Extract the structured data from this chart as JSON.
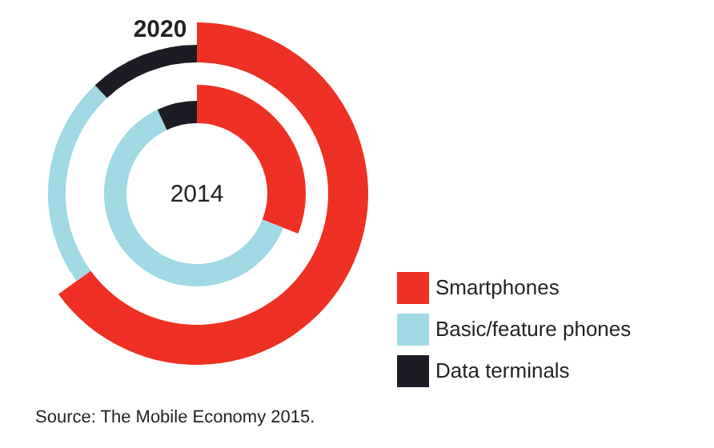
{
  "chart_data": {
    "type": "donut",
    "categories": [
      "Smartphones",
      "Basic/feature phones",
      "Data terminals"
    ],
    "colors": [
      "#ee3124",
      "#a0d8e3",
      "#1c1c24"
    ],
    "series": [
      {
        "name": "2020",
        "values": [
          65,
          23,
          12
        ]
      },
      {
        "name": "2014",
        "values": [
          31,
          62,
          7
        ]
      }
    ],
    "legend": "bottom right",
    "annotations": [
      "Source: The Mobile Economy 2015."
    ]
  }
}
